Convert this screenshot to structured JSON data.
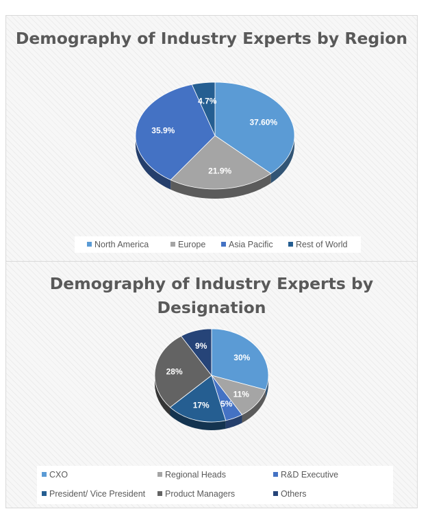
{
  "chart_data": [
    {
      "type": "pie",
      "title": "Demography of Industry Experts by Region",
      "categories": [
        "North America",
        "Europe",
        "Asia Pacific",
        "Rest of World"
      ],
      "values": [
        37.6,
        21.9,
        35.9,
        4.7
      ],
      "data_labels": [
        "37.60%",
        "21.9%",
        "35.9%",
        "4.7%"
      ],
      "colors": [
        "#5b9bd5",
        "#a5a5a5",
        "#4472c4",
        "#255e91"
      ],
      "style": "3d",
      "legend": "bottom"
    },
    {
      "type": "pie",
      "title": "Demography of Industry Experts by Designation",
      "categories": [
        "CXO",
        "Regional Heads",
        "R&D Executive",
        "President/ Vice President",
        "Product Managers",
        "Others"
      ],
      "values": [
        30,
        11,
        5,
        17,
        28,
        9
      ],
      "data_labels": [
        "30%",
        "11%",
        "5%",
        "17%",
        "28%",
        "9%"
      ],
      "colors": [
        "#5b9bd5",
        "#a5a5a5",
        "#4472c4",
        "#255e91",
        "#636363",
        "#264478"
      ],
      "style": "3d",
      "legend": "bottom"
    }
  ]
}
